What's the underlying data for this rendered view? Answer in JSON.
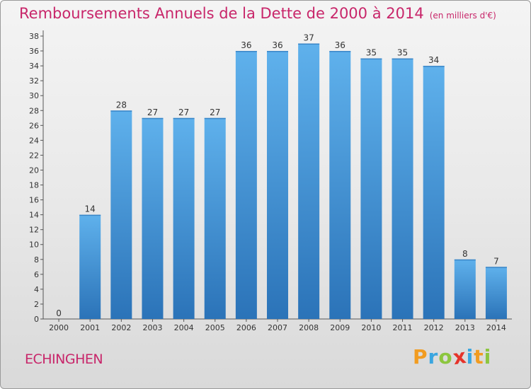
{
  "chart_data": {
    "type": "bar",
    "title": "Remboursements Annuels de la Dette de 2000 à 2014",
    "subtitle": "(en milliers d'€)",
    "categories": [
      "2000",
      "2001",
      "2002",
      "2003",
      "2004",
      "2005",
      "2006",
      "2007",
      "2008",
      "2009",
      "2010",
      "2011",
      "2012",
      "2013",
      "2014"
    ],
    "values": [
      0,
      14,
      28,
      27,
      27,
      27,
      36,
      36,
      37,
      36,
      35,
      35,
      34,
      8,
      7
    ],
    "ylim": [
      0,
      38
    ],
    "yticks": [
      0,
      2,
      4,
      6,
      8,
      10,
      12,
      14,
      16,
      18,
      20,
      22,
      24,
      26,
      28,
      30,
      32,
      34,
      36,
      38
    ],
    "xlabel": "",
    "ylabel": "",
    "grid": false,
    "bar_color": "#3f8fd6",
    "bar_color_light": "#5fb1ec",
    "bar_color_dark": "#2b73b8"
  },
  "commune": "ECHINGHEN",
  "logo": {
    "letters": [
      "P",
      "r",
      "o",
      "x",
      "i",
      "t",
      "i"
    ],
    "colors": [
      "#f29c20",
      "#3aa6e0",
      "#8cc63f",
      "#e6332a",
      "#3aa6e0",
      "#f29c20",
      "#8cc63f"
    ]
  },
  "colors": {
    "accent": "#c8266a",
    "axis": "#555555",
    "text": "#333333"
  }
}
